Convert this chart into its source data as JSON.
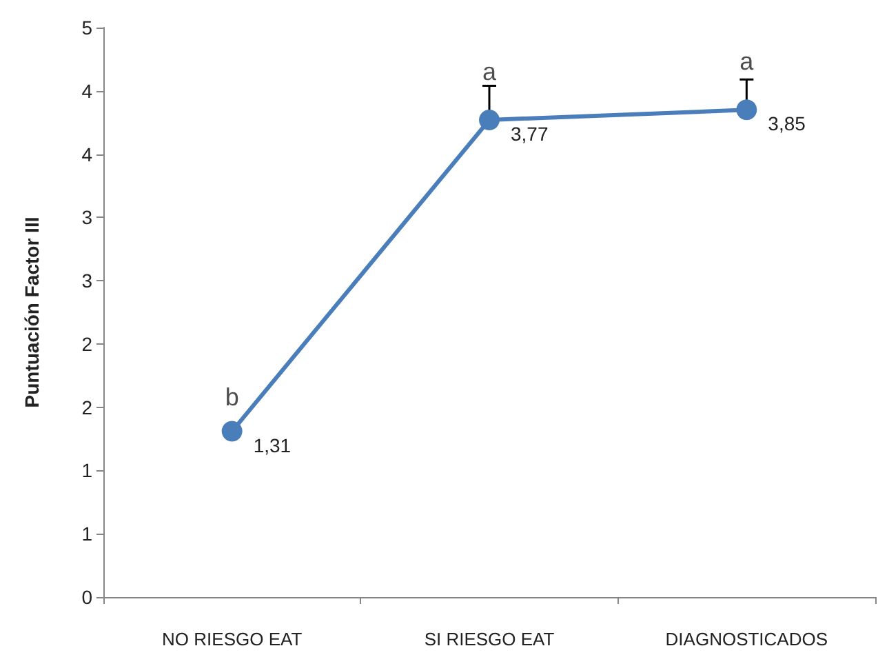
{
  "chart_data": {
    "type": "line",
    "ylabel": "Puntuación Factor III",
    "categories": [
      "NO RIESGO EAT",
      "SI RIESGO EAT",
      "DIAGNOSTICADOS"
    ],
    "series": [
      {
        "color": "#4a7ebb",
        "values": [
          1.31,
          3.77,
          3.85
        ],
        "value_labels": [
          "1,31",
          "3,77",
          "3,85"
        ],
        "errors": [
          null,
          [
            3.77,
            4.04
          ],
          [
            3.85,
            4.09
          ]
        ]
      }
    ],
    "ylim": [
      0,
      4.5
    ],
    "yticks": [
      0,
      {
        "value": 0.5,
        "label": "1"
      },
      {
        "value": 1,
        "label": "1"
      },
      {
        "value": 1.5,
        "label": "2"
      },
      {
        "value": 2,
        "label": "2"
      },
      {
        "value": 2.5,
        "label": "3"
      },
      {
        "value": 3,
        "label": "3"
      },
      {
        "value": 3.5,
        "label": "4"
      },
      {
        "value": 4,
        "label": "4"
      },
      {
        "value": 4.5,
        "label": "5"
      }
    ],
    "annotations": [
      {
        "text": "b",
        "x": "NO RIESGO EAT",
        "y": 1.31
      },
      {
        "text": "a",
        "x": "SI RIESGO EAT",
        "y": 3.77
      },
      {
        "text": "a",
        "x": "DIAGNOSTICADOS",
        "y": 3.85
      }
    ],
    "grid": false,
    "marker": "circle",
    "line_style": "solid"
  }
}
